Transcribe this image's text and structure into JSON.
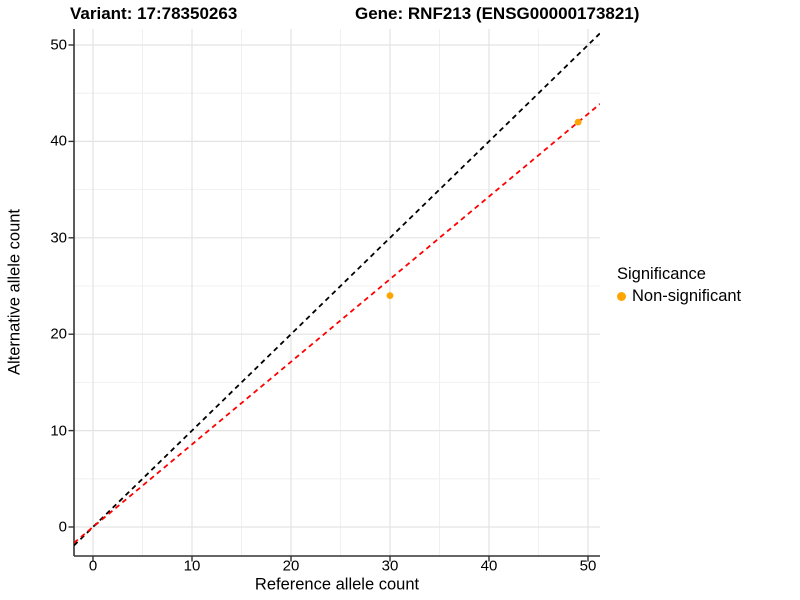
{
  "titles": {
    "variant": "Variant: 17:78350263",
    "gene": "Gene: RNF213 (ENSG00000173821)"
  },
  "axes": {
    "x": {
      "label": "Reference allele count"
    },
    "y": {
      "label": "Alternative allele count"
    }
  },
  "legend": {
    "title": "Significance",
    "items": [
      {
        "label": "Non-significant",
        "color": "#FFA500",
        "marker": "dot-icon"
      }
    ]
  },
  "chart_data": {
    "type": "scatter",
    "title_left": "Variant: 17:78350263",
    "title_right": "Gene: RNF213 (ENSG00000173821)",
    "xlabel": "Reference allele count",
    "ylabel": "Alternative allele count",
    "xlim": [
      -2,
      51.2
    ],
    "ylim": [
      -3,
      51.7
    ],
    "x_ticks": [
      0,
      10,
      20,
      30,
      40,
      50
    ],
    "y_ticks": [
      0,
      10,
      20,
      30,
      40,
      50
    ],
    "grid": "major and minor gridlines, light gray on white panel",
    "legend_position": "right-center",
    "series": [
      {
        "name": "Non-significant",
        "color": "#FFA500",
        "points": [
          {
            "x": 30,
            "y": 24
          },
          {
            "x": 49,
            "y": 42
          }
        ]
      }
    ],
    "reference_lines": [
      {
        "name": "identity-line",
        "slope": 1,
        "intercept": 0,
        "color": "#000000",
        "dash": "dashed"
      },
      {
        "name": "fit-line",
        "slope": 0.857,
        "intercept": 0,
        "color": "#FF0000",
        "dash": "dashed"
      }
    ],
    "colors": {
      "grid_major": "#E3E3E3",
      "grid_minor": "#EDEDED",
      "axis_line": "#333333",
      "text": "#000000",
      "point": "#FFA500"
    }
  }
}
